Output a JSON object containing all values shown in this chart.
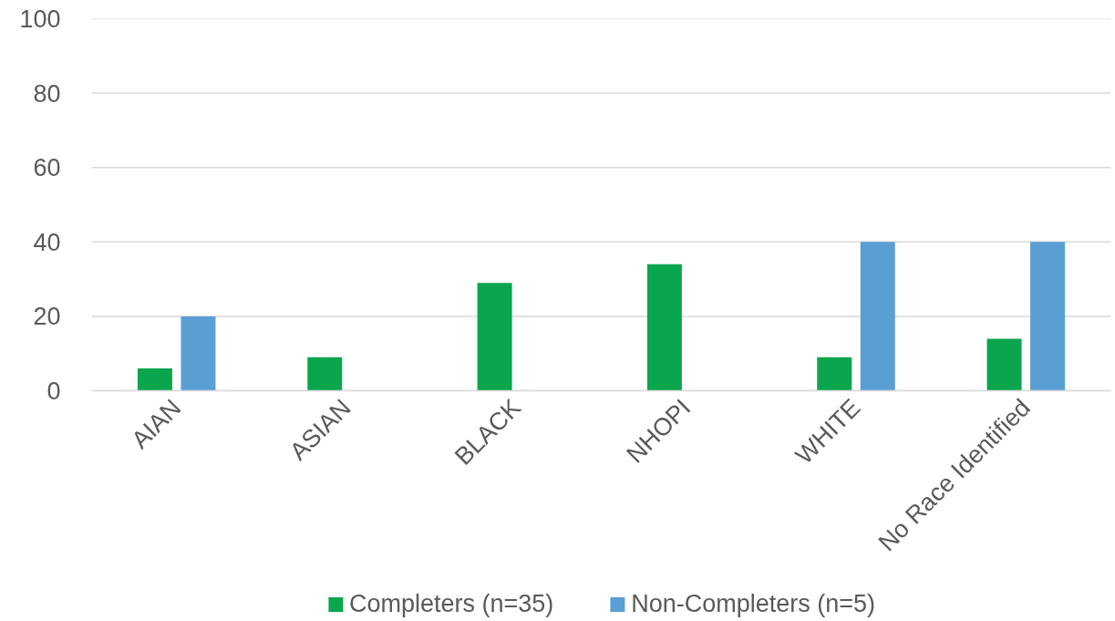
{
  "chart_data": {
    "type": "bar",
    "categories": [
      "AIAN",
      "ASIAN",
      "BLACK",
      "NHOPI",
      "WHITE",
      "No Race Identified"
    ],
    "series": [
      {
        "name": "Completers (n=35)",
        "color": "#0aa64e",
        "values": [
          6,
          9,
          29,
          34,
          9,
          14
        ]
      },
      {
        "name": "Non-Completers (n=5)",
        "color": "#5a9fd4",
        "values": [
          20,
          0,
          0,
          0,
          40,
          40
        ]
      }
    ],
    "ylim": [
      0,
      100
    ],
    "yticks": [
      0,
      20,
      40,
      60,
      80,
      100
    ],
    "grid": "y",
    "legend": "bottom"
  }
}
